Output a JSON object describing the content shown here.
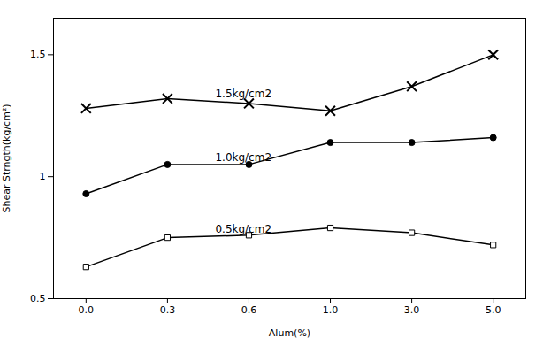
{
  "chart_data": {
    "type": "line",
    "xlabel": "Alum(%)",
    "ylabel": "Shear Strngth(kg/cm²)",
    "categories": [
      "0.0",
      "0.3",
      "0.6",
      "1.0",
      "3.0",
      "5.0"
    ],
    "series": [
      {
        "name": "1.5kg/cm2",
        "color": "black",
        "marker": "x",
        "values": [
          1.28,
          1.32,
          1.3,
          1.27,
          1.37,
          1.5
        ]
      },
      {
        "name": "1.0kg/cm2",
        "color": "black",
        "marker": "circle",
        "values": [
          0.93,
          1.05,
          1.05,
          1.14,
          1.14,
          1.16
        ]
      },
      {
        "name": "0.5kg/cm2",
        "color": "black",
        "marker": "open_square",
        "values": [
          0.63,
          0.75,
          0.76,
          0.79,
          0.77,
          0.72
        ]
      }
    ],
    "annotations": [
      "1.5kg/cm2",
      "1.0kg/cm2",
      "0.5kg/cm2"
    ],
    "ylim": [
      0.5,
      1.65
    ],
    "yticks": [
      0.5,
      1,
      1.5
    ],
    "grid": false
  }
}
